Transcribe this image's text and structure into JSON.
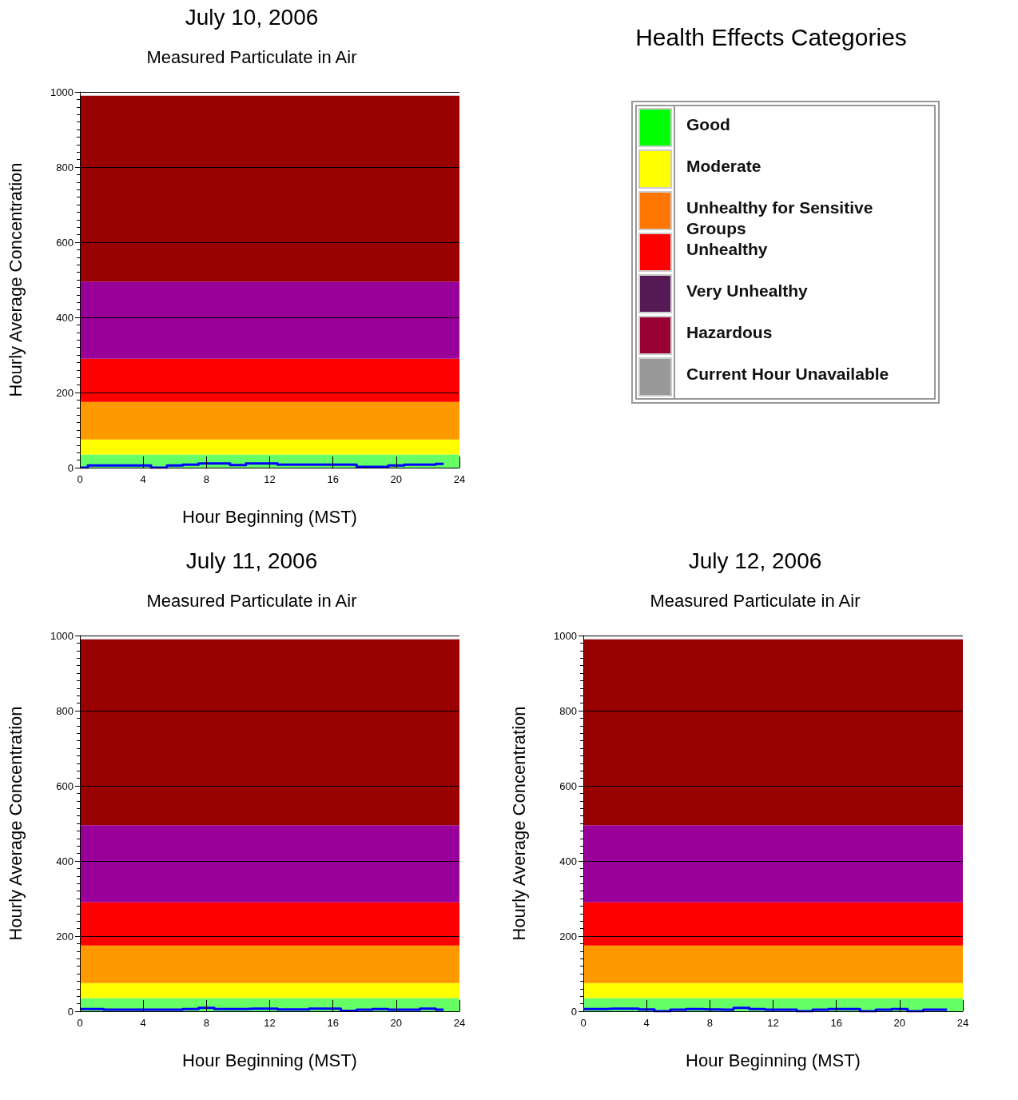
{
  "chart_data": [
    {
      "type": "step",
      "title": "July 10, 2006",
      "subtitle": "Measured Particulate in Air",
      "xlabel": "Hour Beginning (MST)",
      "ylabel": "Hourly Average Concentration",
      "x": [
        0,
        1,
        2,
        3,
        4,
        5,
        6,
        7,
        8,
        9,
        10,
        11,
        12,
        13,
        14,
        15,
        16,
        17,
        18,
        19,
        20,
        21,
        22,
        23
      ],
      "series": [
        {
          "color": "#0000ff",
          "values": [
            0,
            6,
            6,
            6,
            6,
            0,
            6,
            8,
            11,
            11,
            7,
            11,
            11,
            8,
            8,
            8,
            8,
            8,
            2,
            2,
            6,
            8,
            8,
            10
          ]
        }
      ],
      "xlim": [
        0,
        24
      ],
      "xticks": [
        0,
        4,
        8,
        12,
        16,
        20,
        24
      ],
      "ylim": [
        0,
        1000
      ],
      "yticks": [
        0,
        200,
        400,
        600,
        800,
        1000
      ],
      "grid": "y",
      "bands": [
        {
          "axis": "y",
          "from": 0,
          "to": 35,
          "color": "#66ff66"
        },
        {
          "axis": "y",
          "from": 35,
          "to": 75,
          "color": "#ffff00"
        },
        {
          "axis": "y",
          "from": 75,
          "to": 175,
          "color": "#ff9900"
        },
        {
          "axis": "y",
          "from": 175,
          "to": 290,
          "color": "#ff0000"
        },
        {
          "axis": "y",
          "from": 290,
          "to": 495,
          "color": "#990099"
        },
        {
          "axis": "y",
          "from": 495,
          "to": 990,
          "color": "#990000"
        }
      ]
    },
    {
      "type": "other",
      "title": "Health Effects Categories",
      "categories": [
        "Good",
        "Moderate",
        "Unhealthy for Sensitive Groups",
        "Unhealthy",
        "Very Unhealthy",
        "Hazardous",
        "Current Hour Unavailable"
      ],
      "colors": [
        "#00ff00",
        "#ffff00",
        "#ff7700",
        "#ff0000",
        "#551a55",
        "#990033",
        "#999999"
      ]
    },
    {
      "type": "step",
      "title": "July 11, 2006",
      "subtitle": "Measured Particulate in Air",
      "xlabel": "Hour Beginning (MST)",
      "ylabel": "Hourly Average Concentration",
      "x": [
        0,
        1,
        2,
        3,
        4,
        5,
        6,
        7,
        8,
        9,
        10,
        11,
        12,
        13,
        14,
        15,
        16,
        17,
        18,
        19,
        20,
        21,
        22,
        23
      ],
      "series": [
        {
          "color": "#0000ff",
          "values": [
            6,
            6,
            4,
            4,
            4,
            4,
            4,
            6,
            9,
            6,
            6,
            7,
            7,
            5,
            5,
            7,
            7,
            1,
            4,
            6,
            4,
            4,
            7,
            4
          ]
        }
      ],
      "xlim": [
        0,
        24
      ],
      "xticks": [
        0,
        4,
        8,
        12,
        16,
        20,
        24
      ],
      "ylim": [
        0,
        1000
      ],
      "yticks": [
        0,
        200,
        400,
        600,
        800,
        1000
      ],
      "grid": "y",
      "bands": [
        {
          "axis": "y",
          "from": 0,
          "to": 35,
          "color": "#66ff66"
        },
        {
          "axis": "y",
          "from": 35,
          "to": 75,
          "color": "#ffff00"
        },
        {
          "axis": "y",
          "from": 75,
          "to": 175,
          "color": "#ff9900"
        },
        {
          "axis": "y",
          "from": 175,
          "to": 290,
          "color": "#ff0000"
        },
        {
          "axis": "y",
          "from": 290,
          "to": 495,
          "color": "#990099"
        },
        {
          "axis": "y",
          "from": 495,
          "to": 990,
          "color": "#990000"
        }
      ]
    },
    {
      "type": "step",
      "title": "July 12, 2006",
      "subtitle": "Measured Particulate in Air",
      "xlabel": "Hour Beginning (MST)",
      "ylabel": "Hourly Average Concentration",
      "x": [
        0,
        1,
        2,
        3,
        4,
        5,
        6,
        7,
        8,
        9,
        10,
        11,
        12,
        13,
        14,
        15,
        16,
        17,
        18,
        19,
        20,
        21,
        22,
        23
      ],
      "series": [
        {
          "color": "#0000ff",
          "values": [
            6,
            6,
            7,
            7,
            5,
            0,
            4,
            6,
            5,
            4,
            9,
            6,
            4,
            4,
            0,
            4,
            6,
            6,
            0,
            4,
            6,
            0,
            4,
            4
          ]
        }
      ],
      "xlim": [
        0,
        24
      ],
      "xticks": [
        0,
        4,
        8,
        12,
        16,
        20,
        24
      ],
      "ylim": [
        0,
        1000
      ],
      "yticks": [
        0,
        200,
        400,
        600,
        800,
        1000
      ],
      "grid": "y",
      "bands": [
        {
          "axis": "y",
          "from": 0,
          "to": 35,
          "color": "#66ff66"
        },
        {
          "axis": "y",
          "from": 35,
          "to": 75,
          "color": "#ffff00"
        },
        {
          "axis": "y",
          "from": 75,
          "to": 175,
          "color": "#ff9900"
        },
        {
          "axis": "y",
          "from": 175,
          "to": 290,
          "color": "#ff0000"
        },
        {
          "axis": "y",
          "from": 290,
          "to": 495,
          "color": "#990099"
        },
        {
          "axis": "y",
          "from": 495,
          "to": 990,
          "color": "#990000"
        }
      ]
    }
  ]
}
